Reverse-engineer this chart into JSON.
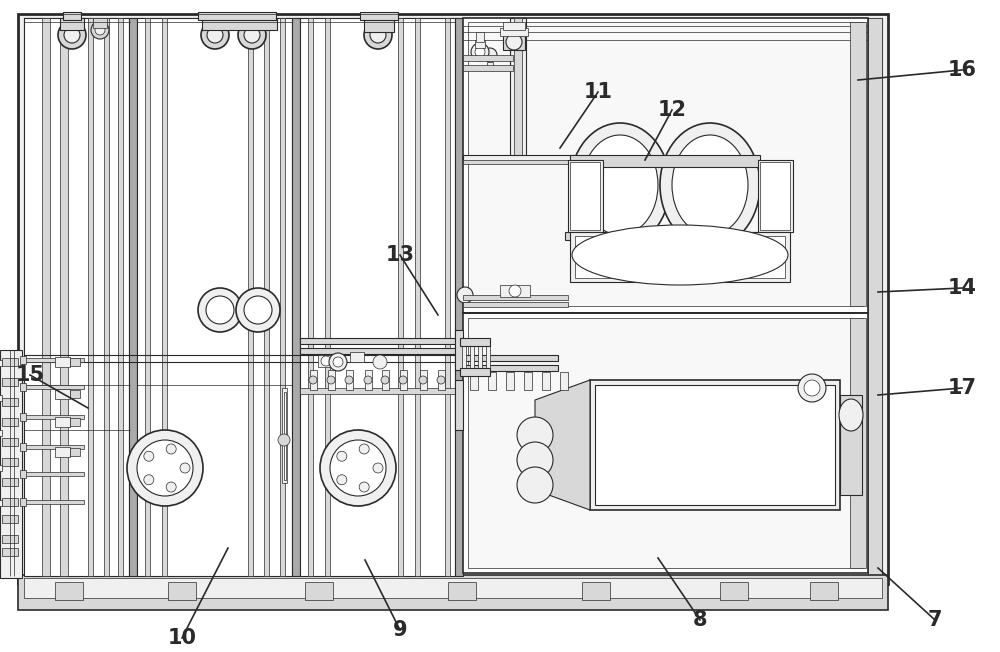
{
  "bg_color": "#ffffff",
  "lc": "#2a2a2a",
  "fig_width": 10.0,
  "fig_height": 6.52,
  "label_data": [
    [
      "7",
      935,
      620,
      878,
      568
    ],
    [
      "8",
      700,
      620,
      658,
      558
    ],
    [
      "9",
      400,
      630,
      365,
      560
    ],
    [
      "10",
      182,
      638,
      228,
      548
    ],
    [
      "11",
      598,
      92,
      560,
      148
    ],
    [
      "12",
      672,
      110,
      645,
      160
    ],
    [
      "13",
      400,
      255,
      438,
      315
    ],
    [
      "14",
      962,
      288,
      878,
      292
    ],
    [
      "15",
      30,
      375,
      88,
      408
    ],
    [
      "16",
      962,
      70,
      858,
      80
    ],
    [
      "17",
      962,
      388,
      878,
      395
    ]
  ]
}
